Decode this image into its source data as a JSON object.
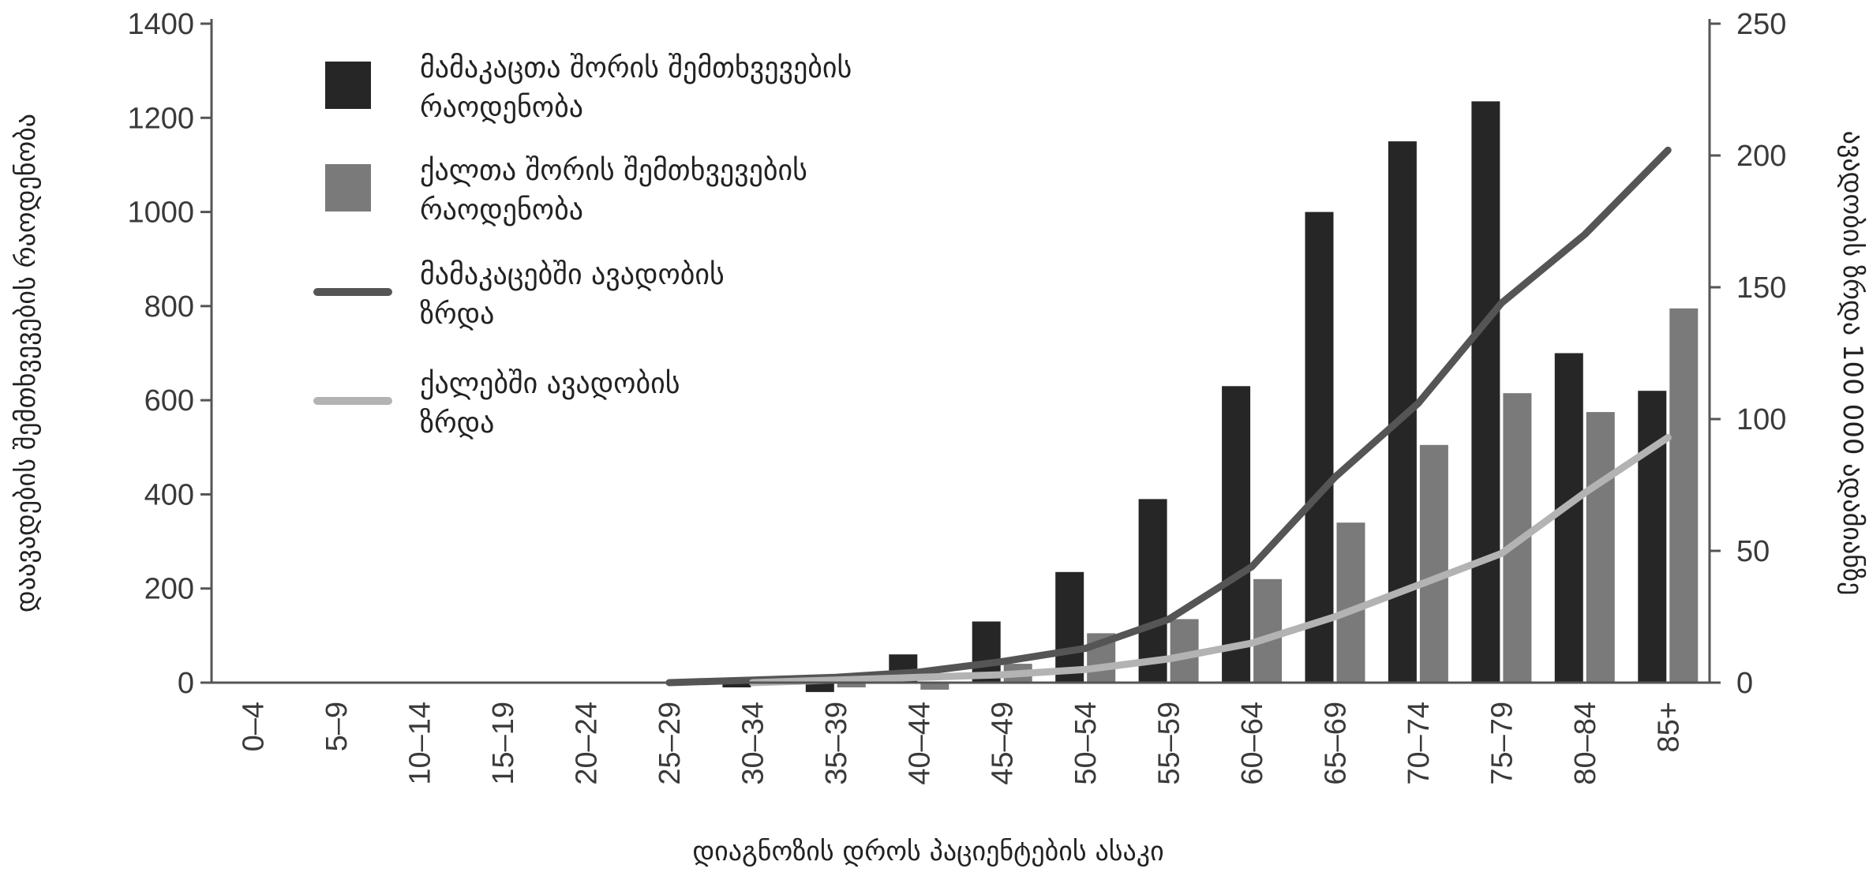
{
  "chart_data": {
    "type": "bar",
    "categories": [
      "0–4",
      "5–9",
      "10–14",
      "15–19",
      "20–24",
      "25–29",
      "30–34",
      "35–39",
      "40–44",
      "45–49",
      "50–54",
      "55–59",
      "60–64",
      "65–69",
      "70–74",
      "75–79",
      "80–84",
      "85+"
    ],
    "series": [
      {
        "name": "მამაკაცთა შორის შემთხვევების რაოდენობა",
        "kind": "bar",
        "axis": "left",
        "color": "#262626",
        "values": [
          0,
          0,
          0,
          0,
          0,
          0,
          -10,
          -20,
          60,
          130,
          235,
          390,
          630,
          1000,
          1150,
          1235,
          700,
          620
        ]
      },
      {
        "name": "ქალთა შორის შემთხვევების რაოდენობა",
        "kind": "bar",
        "axis": "left",
        "color": "#7a7a7a",
        "values": [
          0,
          0,
          0,
          0,
          0,
          0,
          -5,
          -10,
          -15,
          40,
          105,
          135,
          220,
          340,
          505,
          615,
          575,
          795
        ]
      },
      {
        "name": "მამაკაცებში ავადობის ზრდა",
        "kind": "line",
        "axis": "right",
        "color": "#555555",
        "values": [
          0,
          0,
          0,
          0,
          0,
          0,
          1,
          2,
          4,
          8,
          13,
          24,
          44,
          78,
          106,
          144,
          170,
          202
        ]
      },
      {
        "name": "ქალებში ავადობის ზრდა",
        "kind": "line",
        "axis": "right",
        "color": "#b3b3b3",
        "values": [
          0,
          0,
          0,
          0,
          0,
          0,
          0,
          1,
          2,
          3,
          5,
          9,
          15,
          25,
          37,
          49,
          72,
          93
        ]
      }
    ],
    "xlabel": "დიაგნოზის დროს პაციენტების ასაკი",
    "ylabel": "დაავადების შემთხვევების რაოდენობა",
    "y2label": "ავადობის ზრდა 100 000 ადამიანზე",
    "ylim": [
      0,
      1400
    ],
    "y2lim": [
      0,
      250
    ],
    "yticks": [
      "0",
      "200",
      "400",
      "600",
      "800",
      "1000",
      "1200",
      "1400"
    ],
    "y2ticks": [
      "0",
      "50",
      "100",
      "150",
      "200",
      "250"
    ],
    "legend_position": "top-left",
    "legend": [
      {
        "lines": [
          "მამაკაცთა შორის შემთხვევების",
          "რაოდენობა"
        ],
        "swatch": "box",
        "color": "#262626"
      },
      {
        "lines": [
          "ქალთა შორის შემთხვევების",
          "რაოდენობა"
        ],
        "swatch": "box",
        "color": "#7a7a7a"
      },
      {
        "lines": [
          "მამაკაცებში ავადობის",
          "ზრდა"
        ],
        "swatch": "line",
        "color": "#555555"
      },
      {
        "lines": [
          "ქალებში ავადობის",
          "ზრდა"
        ],
        "swatch": "line",
        "color": "#b3b3b3"
      }
    ],
    "grid": false
  }
}
